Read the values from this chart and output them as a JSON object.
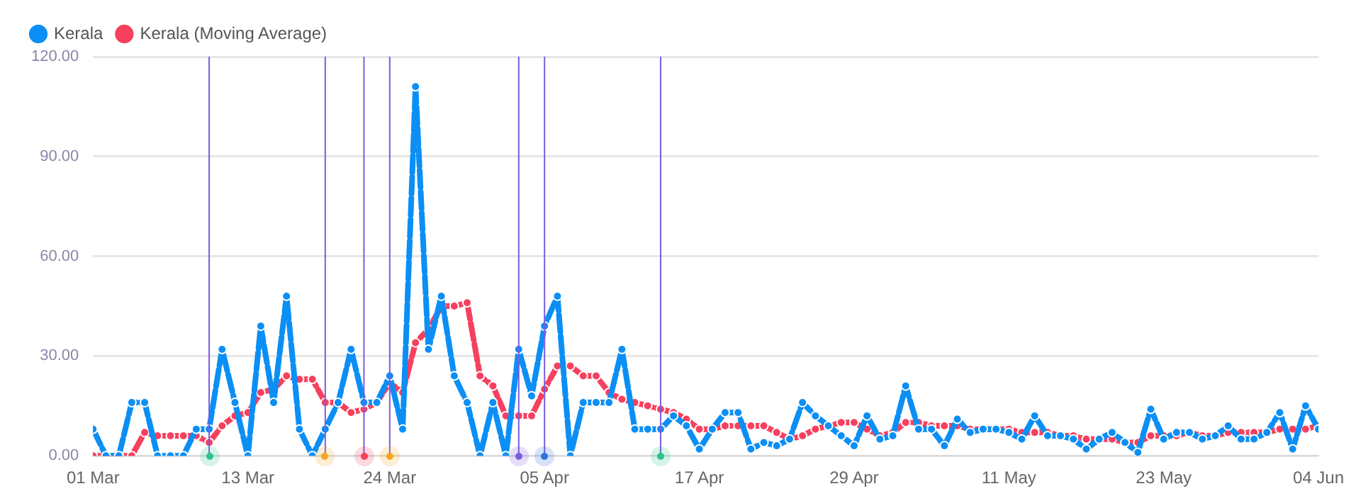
{
  "chart_data": {
    "type": "line",
    "x": [
      "--03-01",
      "--03-02",
      "--03-03",
      "--03-04",
      "--03-05",
      "--03-06",
      "--03-07",
      "--03-08",
      "--03-09",
      "--03-10",
      "--03-11",
      "--03-12",
      "--03-13",
      "--03-14",
      "--03-15",
      "--03-16",
      "--03-17",
      "--03-18",
      "--03-19",
      "--03-20",
      "--03-21",
      "--03-22",
      "--03-23",
      "--03-24",
      "--03-25",
      "--03-26",
      "--03-27",
      "--03-28",
      "--03-29",
      "--03-30",
      "--03-31",
      "--04-01",
      "--04-02",
      "--04-03",
      "--04-04",
      "--04-05",
      "--04-06",
      "--04-07",
      "--04-08",
      "--04-09",
      "--04-10",
      "--04-11",
      "--04-12",
      "--04-13",
      "--04-14",
      "--04-15",
      "--04-16",
      "--04-17",
      "--04-18",
      "--04-19",
      "--04-20",
      "--04-21",
      "--04-22",
      "--04-23",
      "--04-24",
      "--04-25",
      "--04-26",
      "--04-27",
      "--04-28",
      "--04-29",
      "--04-30",
      "--05-01",
      "--05-02",
      "--05-03",
      "--05-04",
      "--05-05",
      "--05-06",
      "--05-07",
      "--05-08",
      "--05-09",
      "--05-10",
      "--05-11",
      "--05-12",
      "--05-13",
      "--05-14",
      "--05-15",
      "--05-16",
      "--05-17",
      "--05-18",
      "--05-19",
      "--05-20",
      "--05-21",
      "--05-22",
      "--05-23",
      "--05-24",
      "--05-25",
      "--05-26",
      "--05-27",
      "--05-28",
      "--05-29",
      "--05-30",
      "--05-31",
      "--06-01",
      "--06-02",
      "--06-03",
      "--06-04"
    ],
    "series": [
      {
        "name": "Kerala",
        "color": "#0b8ff5",
        "values": [
          8,
          0,
          0,
          16,
          16,
          0,
          0,
          0,
          8,
          8,
          32,
          16,
          0,
          39,
          16,
          48,
          8,
          0,
          8,
          16,
          32,
          16,
          16,
          24,
          8,
          111,
          32,
          48,
          24,
          16,
          0,
          16,
          0,
          32,
          18,
          39,
          48,
          0,
          16,
          16,
          16,
          32,
          8,
          8,
          8,
          12,
          9,
          2,
          8,
          13,
          13,
          2,
          4,
          3,
          5,
          16,
          12,
          9,
          6,
          3,
          12,
          5,
          6,
          21,
          8,
          8,
          3,
          11,
          7,
          8,
          8,
          7,
          5,
          12,
          6,
          6,
          5,
          2,
          5,
          7,
          4,
          1,
          14,
          5,
          7,
          7,
          5,
          6,
          9,
          5,
          5,
          7,
          13,
          2,
          15,
          8
        ]
      },
      {
        "name": "Kerala (Moving Average)",
        "color": "#f7405e",
        "values": [
          0,
          0,
          0,
          0,
          7,
          6,
          6,
          6,
          6,
          4,
          9,
          12,
          13,
          19,
          20,
          24,
          23,
          23,
          16,
          16,
          13,
          14,
          16,
          22,
          19,
          34,
          38,
          45,
          45,
          46,
          24,
          21,
          12,
          12,
          12,
          20,
          27,
          27,
          24,
          24,
          19,
          17,
          16,
          15,
          14,
          13,
          11,
          8,
          8,
          9,
          9,
          9,
          9,
          7,
          5,
          6,
          8,
          9,
          10,
          10,
          8,
          6,
          7,
          10,
          10,
          9,
          9,
          9,
          8,
          8,
          8,
          8,
          7,
          7,
          7,
          6,
          6,
          5,
          5,
          5,
          4,
          4,
          6,
          6,
          6,
          7,
          6,
          6,
          7,
          7,
          7,
          7,
          8,
          8,
          8,
          9
        ]
      }
    ],
    "xlim": [
      "--03-01",
      "--06-04"
    ],
    "xticks": [
      {
        "value": "--03-01",
        "label": "01 Mar"
      },
      {
        "value": "--03-13",
        "label": "13 Mar"
      },
      {
        "value": "--03-24",
        "label": "24 Mar"
      },
      {
        "value": "--04-05",
        "label": "05 Apr"
      },
      {
        "value": "--04-17",
        "label": "17 Apr"
      },
      {
        "value": "--04-29",
        "label": "29 Apr"
      },
      {
        "value": "--05-11",
        "label": "11 May"
      },
      {
        "value": "--05-23",
        "label": "23 May"
      },
      {
        "value": "--06-04",
        "label": "04 Jun"
      }
    ],
    "ylim": [
      0,
      120
    ],
    "yticks": [
      {
        "value": 0,
        "label": "0.00"
      },
      {
        "value": 30,
        "label": "30.00"
      },
      {
        "value": 60,
        "label": "60.00"
      },
      {
        "value": 90,
        "label": "90.00"
      },
      {
        "value": 120,
        "label": "120.00"
      }
    ],
    "ref_lines": [
      {
        "axis": "x",
        "value": "--03-10",
        "color": "#7b5ce0"
      },
      {
        "axis": "x",
        "value": "--03-19",
        "color": "#7b5ce0"
      },
      {
        "axis": "x",
        "value": "--03-22",
        "color": "#7b5ce0"
      },
      {
        "axis": "x",
        "value": "--03-24",
        "color": "#7b5ce0"
      },
      {
        "axis": "x",
        "value": "--04-03",
        "color": "#7b5ce0"
      },
      {
        "axis": "x",
        "value": "--04-05",
        "color": "#7b5ce0"
      },
      {
        "axis": "x",
        "value": "--04-14",
        "color": "#7b5ce0"
      }
    ],
    "grid": "y",
    "legend": "top left",
    "marker": "circle",
    "line_style": "dashed"
  }
}
